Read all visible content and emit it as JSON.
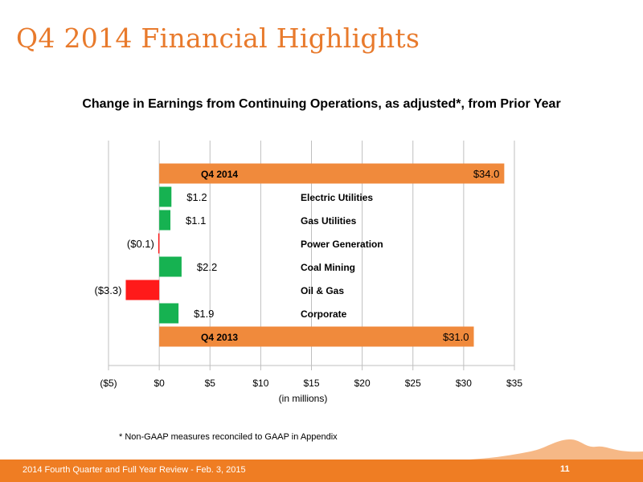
{
  "slide": {
    "title": "Q4 2014 Financial Highlights",
    "footnote": "*  Non-GAAP measures reconciled to GAAP in Appendix",
    "footer_text": "2014 Fourth Quarter and Full Year Review - Feb. 3, 2015",
    "page_number": "11"
  },
  "colors": {
    "brand_orange": "#ef7d23",
    "title_orange": "#e87a2c",
    "increase_green": "#16b251",
    "decrease_red": "#ff1a1a",
    "total_orange": "#f08a3c"
  },
  "chart_data": {
    "type": "bar",
    "orientation": "horizontal",
    "title": "Change in Earnings from Continuing Operations, as adjusted*, from Prior Year",
    "xlabel": "(in millions)",
    "ylabel": "",
    "xlim": [
      -5,
      35
    ],
    "x_ticks": [
      -5,
      0,
      5,
      10,
      15,
      20,
      25,
      30,
      35
    ],
    "x_tick_labels": [
      "($5)",
      "$0",
      "$5",
      "$10",
      "$15",
      "$20",
      "$25",
      "$30",
      "$35"
    ],
    "grid": "vertical",
    "bars": [
      {
        "label": "Q4 2014",
        "kind": "total",
        "value": 34.0,
        "value_label": "$34.0"
      },
      {
        "label": "Electric Utilities",
        "kind": "change",
        "value": 1.2,
        "value_label": "$1.2"
      },
      {
        "label": "Gas Utilities",
        "kind": "change",
        "value": 1.1,
        "value_label": "$1.1"
      },
      {
        "label": "Power Generation",
        "kind": "change",
        "value": -0.1,
        "value_label": "($0.1)"
      },
      {
        "label": "Coal Mining",
        "kind": "change",
        "value": 2.2,
        "value_label": "$2.2"
      },
      {
        "label": "Oil & Gas",
        "kind": "change",
        "value": -3.3,
        "value_label": "($3.3)"
      },
      {
        "label": "Corporate",
        "kind": "change",
        "value": 1.9,
        "value_label": "$1.9"
      },
      {
        "label": "Q4 2013",
        "kind": "total",
        "value": 31.0,
        "value_label": "$31.0"
      }
    ]
  }
}
